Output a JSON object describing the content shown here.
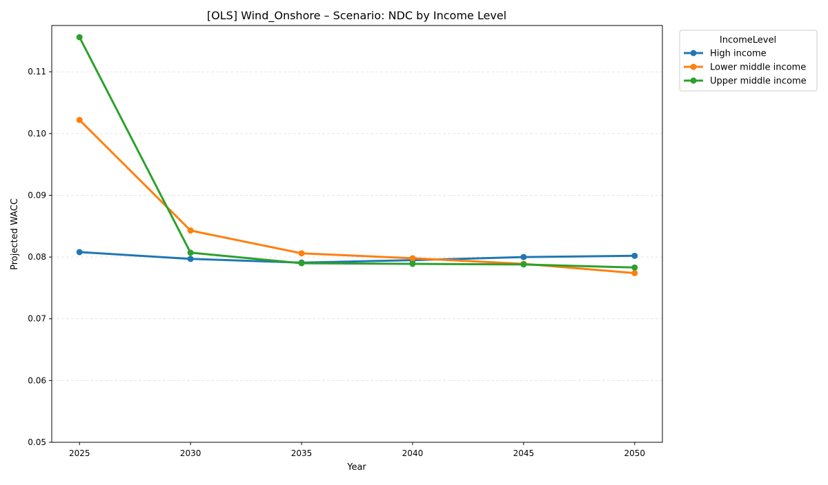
{
  "chart_data": {
    "type": "line",
    "title": "[OLS] Wind_Onshore – Scenario: NDC by Income Level",
    "xlabel": "Year",
    "ylabel": "Projected WACC",
    "x": [
      2025,
      2030,
      2035,
      2040,
      2045,
      2050
    ],
    "xlim": [
      2023.75,
      2051.25
    ],
    "ylim": [
      0.05,
      0.1175
    ],
    "yticks": [
      0.05,
      0.06,
      0.07,
      0.08,
      0.09,
      0.1,
      0.11
    ],
    "ytick_labels": [
      "0.05",
      "0.06",
      "0.07",
      "0.08",
      "0.09",
      "0.10",
      "0.11"
    ],
    "xticks": [
      2025,
      2030,
      2035,
      2040,
      2045,
      2050
    ],
    "xtick_labels": [
      "2025",
      "2030",
      "2035",
      "2040",
      "2045",
      "2050"
    ],
    "grid": "horizontal dashed",
    "legend": {
      "title": "IncomeLevel",
      "placement": "outside top-right"
    },
    "series": [
      {
        "name": "High income",
        "color": "#1f77b4",
        "values": [
          0.0808,
          0.0797,
          0.0791,
          0.0795,
          0.08,
          0.0802
        ]
      },
      {
        "name": "Lower middle income",
        "color": "#ff7f0e",
        "values": [
          0.1022,
          0.0843,
          0.0806,
          0.0798,
          0.0789,
          0.0774
        ]
      },
      {
        "name": "Upper middle income",
        "color": "#2ca02c",
        "values": [
          0.1156,
          0.0807,
          0.079,
          0.0789,
          0.0788,
          0.0783
        ]
      }
    ]
  }
}
